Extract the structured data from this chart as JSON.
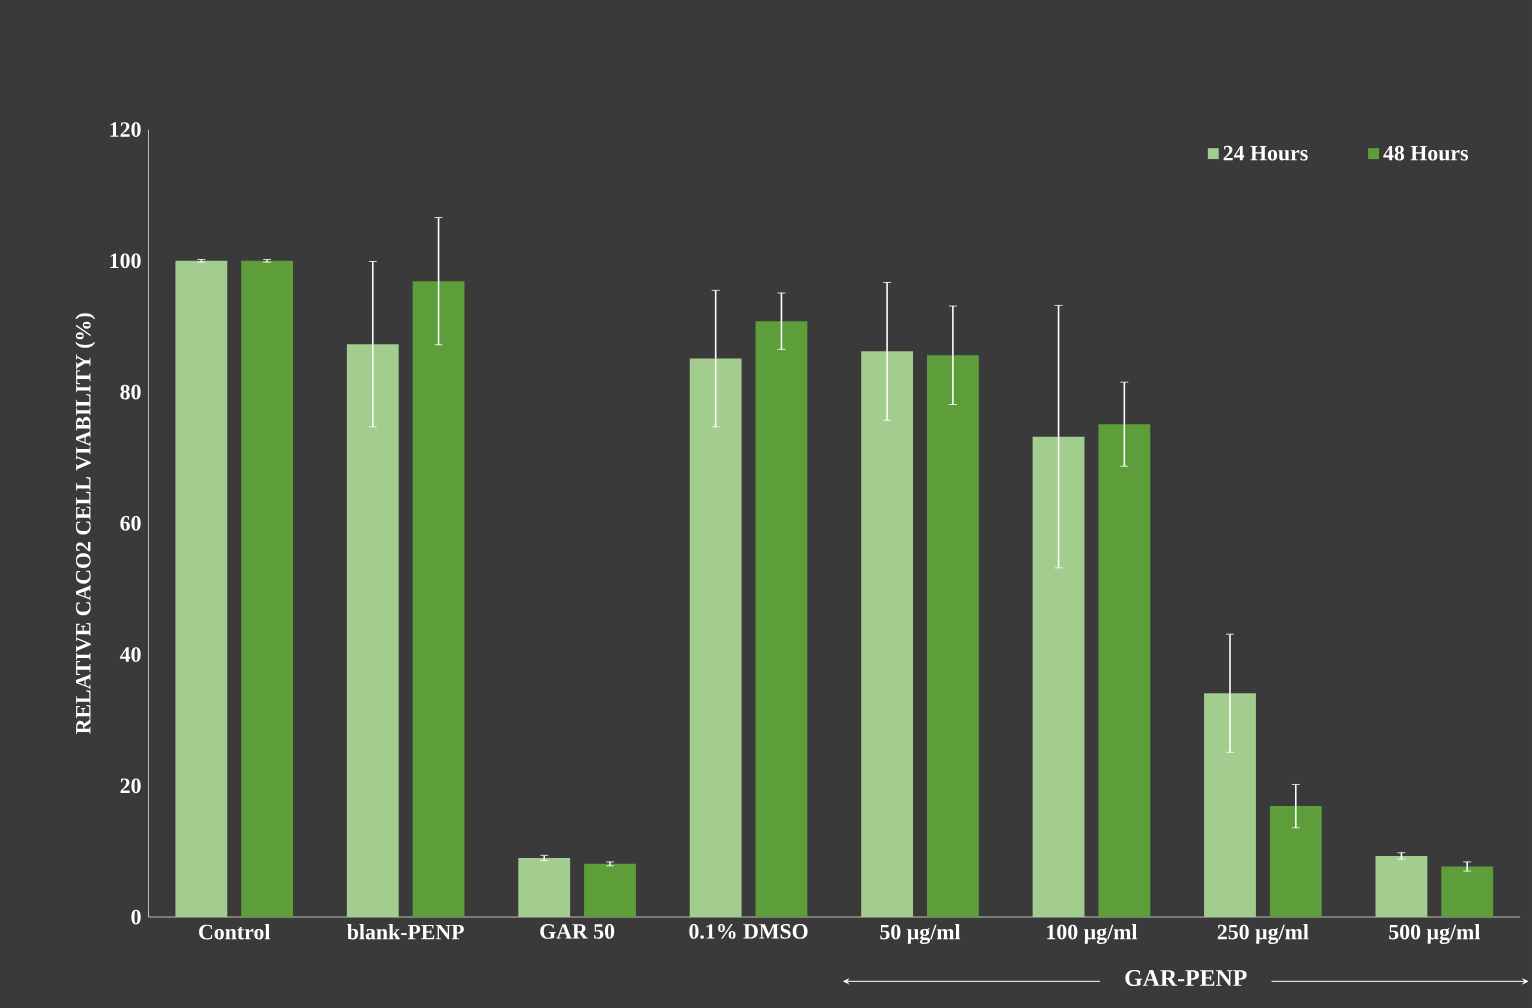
{
  "chart_data": {
    "type": "bar",
    "ylabel": "RELATIVE CACO2 CELL VIABILITY (%)",
    "categories": [
      "Control",
      "blank-PENP",
      "GAR 50",
      "0.1% DMSO",
      "50 µg/ml",
      "100 µg/ml",
      "250 µg/ml",
      "500 µg/ml"
    ],
    "series": [
      {
        "name": "24 Hours",
        "color": "#a3cc8f",
        "values": [
          100,
          87.3,
          9.0,
          85.1,
          86.2,
          73.2,
          34.1,
          9.3
        ],
        "errors": [
          0.2,
          12.6,
          0.4,
          10.4,
          10.5,
          20,
          9,
          0.5
        ]
      },
      {
        "name": "48 Hours",
        "color": "#5e9e3a",
        "values": [
          100,
          96.9,
          8.1,
          90.8,
          85.6,
          75.1,
          16.9,
          7.7
        ],
        "errors": [
          0.2,
          9.7,
          0.3,
          4.3,
          7.5,
          6.4,
          3.3,
          0.7
        ]
      }
    ],
    "ylim": [
      0,
      120
    ],
    "yticks": [
      0,
      20,
      40,
      60,
      80,
      100,
      120
    ],
    "grid": false,
    "legend": "top right",
    "annotations": [
      "GAR-PENP"
    ]
  }
}
